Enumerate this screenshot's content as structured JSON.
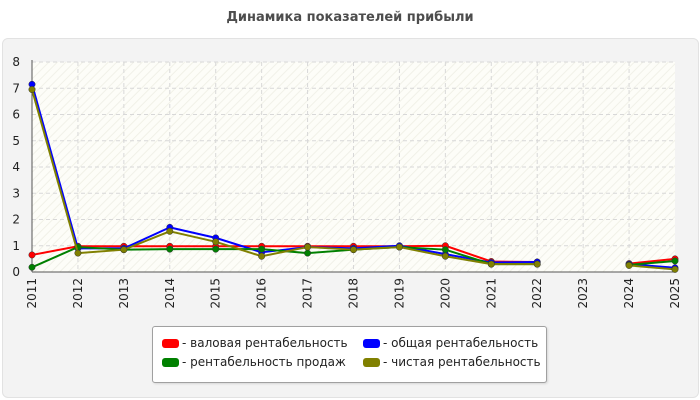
{
  "chart_data": {
    "type": "line",
    "title": "Динамика показателей прибыли",
    "categories": [
      "2011",
      "2012",
      "2013",
      "2014",
      "2015",
      "2016",
      "2017",
      "2018",
      "2019",
      "2020",
      "2021",
      "2022",
      "2023",
      "2024",
      "2025"
    ],
    "ylim": [
      0,
      8
    ],
    "yticks": [
      0,
      1,
      2,
      3,
      4,
      5,
      6,
      7,
      8
    ],
    "grid": true,
    "legend_position": "bottom",
    "series": [
      {
        "name": "- валовая рентабельность",
        "color": "#ff0000",
        "values": [
          0.65,
          0.98,
          0.98,
          0.98,
          0.98,
          0.98,
          0.98,
          0.98,
          0.98,
          1.0,
          0.4,
          0.38,
          null,
          0.32,
          0.5
        ]
      },
      {
        "name": "- общая рентабельность",
        "color": "#0000ff",
        "values": [
          7.15,
          0.9,
          0.9,
          1.7,
          1.3,
          0.75,
          0.95,
          0.9,
          1.0,
          0.68,
          0.36,
          0.38,
          null,
          0.3,
          0.16
        ]
      },
      {
        "name": "- рентабельность продаж",
        "color": "#008000",
        "values": [
          0.18,
          0.95,
          0.85,
          0.87,
          0.87,
          0.87,
          0.72,
          0.85,
          0.95,
          0.85,
          0.3,
          0.3,
          null,
          0.27,
          0.42
        ]
      },
      {
        "name": "- чистая рентабельность",
        "color": "#808000",
        "values": [
          6.95,
          0.72,
          0.85,
          1.55,
          1.15,
          0.6,
          0.95,
          0.85,
          0.95,
          0.6,
          0.3,
          0.3,
          null,
          0.25,
          0.1
        ]
      }
    ]
  }
}
